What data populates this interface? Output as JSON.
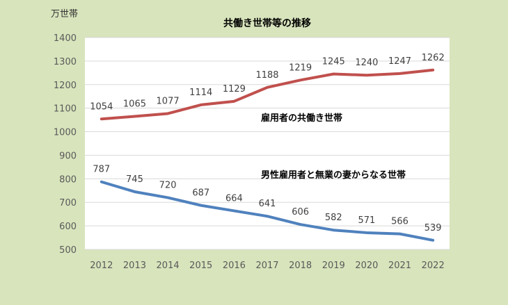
{
  "chart_data": {
    "type": "line",
    "title": "共働き世帯等の推移",
    "ylabel": "万世帯",
    "xlabel": "",
    "ylim": [
      500,
      1400
    ],
    "yticks": [
      500,
      600,
      700,
      800,
      900,
      1000,
      1100,
      1200,
      1300,
      1400
    ],
    "categories": [
      "2012",
      "2013",
      "2014",
      "2015",
      "2016",
      "2017",
      "2018",
      "2019",
      "2020",
      "2021",
      "2022"
    ],
    "grid": true,
    "legend": "none",
    "series": [
      {
        "name": "雇用者の共働き世帯",
        "color": "#c0504d",
        "values": [
          1054,
          1065,
          1077,
          1114,
          1129,
          1188,
          1219,
          1245,
          1240,
          1247,
          1262
        ]
      },
      {
        "name": "男性雇用者と無業の妻からなる世帯",
        "color": "#4f81bd",
        "values": [
          787,
          745,
          720,
          687,
          664,
          641,
          606,
          582,
          571,
          566,
          539
        ]
      }
    ]
  }
}
